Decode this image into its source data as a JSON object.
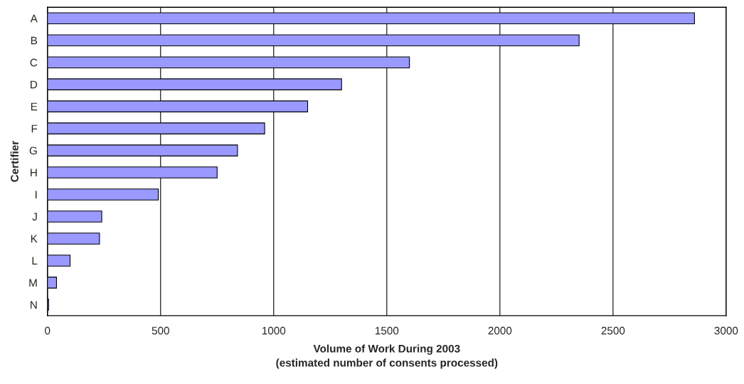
{
  "chart_data": {
    "type": "bar",
    "orientation": "horizontal",
    "categories": [
      "A",
      "B",
      "C",
      "D",
      "E",
      "F",
      "G",
      "H",
      "I",
      "J",
      "K",
      "L",
      "M",
      "N"
    ],
    "values": [
      2860,
      2350,
      1600,
      1300,
      1150,
      960,
      840,
      750,
      490,
      240,
      230,
      100,
      40,
      5
    ],
    "color": "#9999ff",
    "xlabel": "Volume of Work During 2003\n(estimated number of consents processed)",
    "ylabel": "Certifier",
    "xlim": [
      0,
      3000
    ],
    "xticks": [
      0,
      500,
      1000,
      1500,
      2000,
      2500,
      3000
    ],
    "grid": "x"
  }
}
